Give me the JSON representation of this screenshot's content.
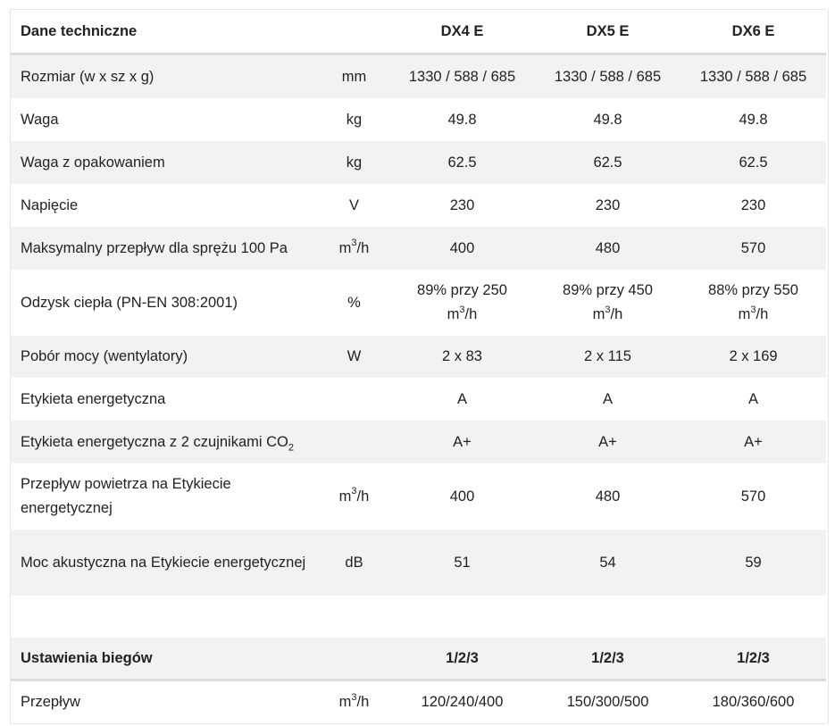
{
  "header": {
    "title": "Dane techniczne",
    "models": [
      "DX4 E",
      "DX5 E",
      "DX6 E"
    ]
  },
  "rows": [
    {
      "name": "Rozmiar (w x sz x g)",
      "unit": "mm",
      "values": [
        "1330 / 588 / 685",
        "1330 / 588 / 685",
        "1330 / 588 / 685"
      ]
    },
    {
      "name": "Waga",
      "unit": "kg",
      "values": [
        "49.8",
        "49.8",
        "49.8"
      ]
    },
    {
      "name": "Waga z opakowaniem",
      "unit": "kg",
      "values": [
        "62.5",
        "62.5",
        "62.5"
      ]
    },
    {
      "name": "Napięcie",
      "unit": "V",
      "values": [
        "230",
        "230",
        "230"
      ]
    },
    {
      "name": "Maksymalny przepływ dla sprężu 100 Pa",
      "unit_base": "m",
      "unit_sup": "3",
      "unit_rest": "/h",
      "values": [
        "400",
        "480",
        "570"
      ]
    },
    {
      "name": "Odzysk ciepła (PN-EN 308:2001)",
      "unit": "%",
      "values_line1": [
        "89% przy 250",
        "89% przy 450",
        "88% przy 550"
      ],
      "values_unit_base": "m",
      "values_unit_sup": "3",
      "values_unit_rest": "/h"
    },
    {
      "name": "Pobór mocy (wentylatory)",
      "unit": "W",
      "values": [
        "2 x 83",
        "2 x 115",
        "2 x 169"
      ]
    },
    {
      "name": "Etykieta energetyczna",
      "unit": "",
      "values": [
        "A",
        "A",
        "A"
      ]
    },
    {
      "name_base": "Etykieta energetyczna z 2 czujnikami CO",
      "name_sub": "2",
      "unit": "",
      "values": [
        "A+",
        "A+",
        "A+"
      ]
    },
    {
      "name": "Przepływ powietrza na Etykiecie energetycznej",
      "unit_base": "m",
      "unit_sup": "3",
      "unit_rest": "/h",
      "values": [
        "400",
        "480",
        "570"
      ]
    },
    {
      "name": "Moc akustyczna na Etykiecie energetycznej",
      "unit": "dB",
      "values": [
        "51",
        "54",
        "59"
      ]
    }
  ],
  "speeds": {
    "title": "Ustawienia biegów",
    "values": [
      "1/2/3",
      "1/2/3",
      "1/2/3"
    ]
  },
  "flow": {
    "name": "Przepływ",
    "unit_base": "m",
    "unit_sup": "3",
    "unit_rest": "/h",
    "values": [
      "120/240/400",
      "150/300/500",
      "180/360/600"
    ]
  }
}
